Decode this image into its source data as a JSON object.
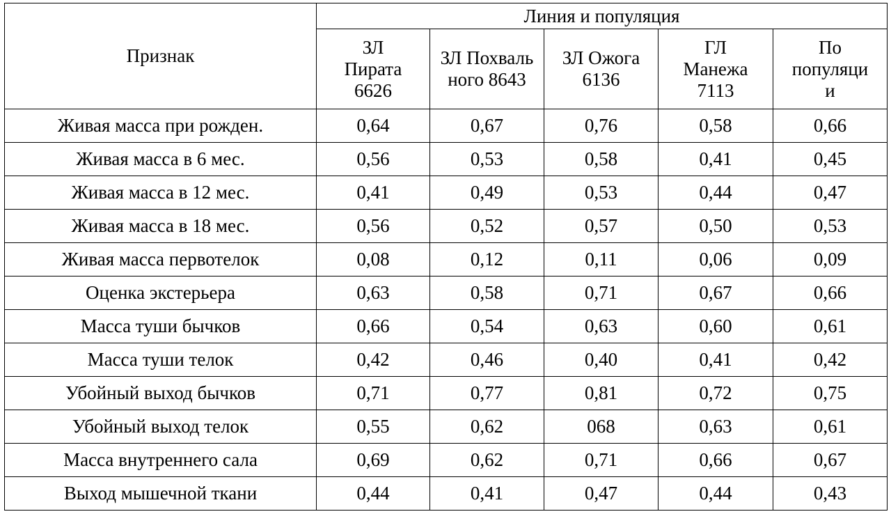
{
  "table": {
    "header": {
      "row_label": "Признак",
      "group_label": "Линия и популяция",
      "columns": [
        "ЗЛ\nПирата\n6626",
        "ЗЛ Похваль\nного 8643",
        "ЗЛ Ожога\n6136",
        "ГЛ\nМанежа\n7113",
        "По\nпопуляци\nи"
      ]
    },
    "rows": [
      {
        "label": "Живая масса при рожден.",
        "values": [
          "0,64",
          "0,67",
          "0,76",
          "0,58",
          "0,66"
        ]
      },
      {
        "label": "Живая масса в 6 мес.",
        "values": [
          "0,56",
          "0,53",
          "0,58",
          "0,41",
          "0,45"
        ]
      },
      {
        "label": "Живая масса в 12 мес.",
        "values": [
          "0,41",
          "0,49",
          "0,53",
          "0,44",
          "0,47"
        ]
      },
      {
        "label": "Живая масса в 18 мес.",
        "values": [
          "0,56",
          "0,52",
          "0,57",
          "0,50",
          "0,53"
        ]
      },
      {
        "label": "Живая масса первотелок",
        "values": [
          "0,08",
          "0,12",
          "0,11",
          "0,06",
          "0,09"
        ]
      },
      {
        "label": "Оценка экстерьера",
        "values": [
          "0,63",
          "0,58",
          "0,71",
          "0,67",
          "0,66"
        ]
      },
      {
        "label": "Масса туши бычков",
        "values": [
          "0,66",
          "0,54",
          "0,63",
          "0,60",
          "0,61"
        ]
      },
      {
        "label": "Масса туши телок",
        "values": [
          "0,42",
          "0,46",
          "0,40",
          "0,41",
          "0,42"
        ]
      },
      {
        "label": "Убойный выход бычков",
        "values": [
          "0,71",
          "0,77",
          "0,81",
          "0,72",
          "0,75"
        ]
      },
      {
        "label": "Убойный выход телок",
        "values": [
          "0,55",
          "0,62",
          "068",
          "0,63",
          "0,61"
        ]
      },
      {
        "label": "Масса внутреннего сала",
        "values": [
          "0,69",
          "0,62",
          "0,71",
          "0,66",
          "0,67"
        ]
      },
      {
        "label": "Выход мышечной ткани",
        "values": [
          "0,44",
          "0,41",
          "0,47",
          "0,44",
          "0,43"
        ]
      }
    ]
  }
}
